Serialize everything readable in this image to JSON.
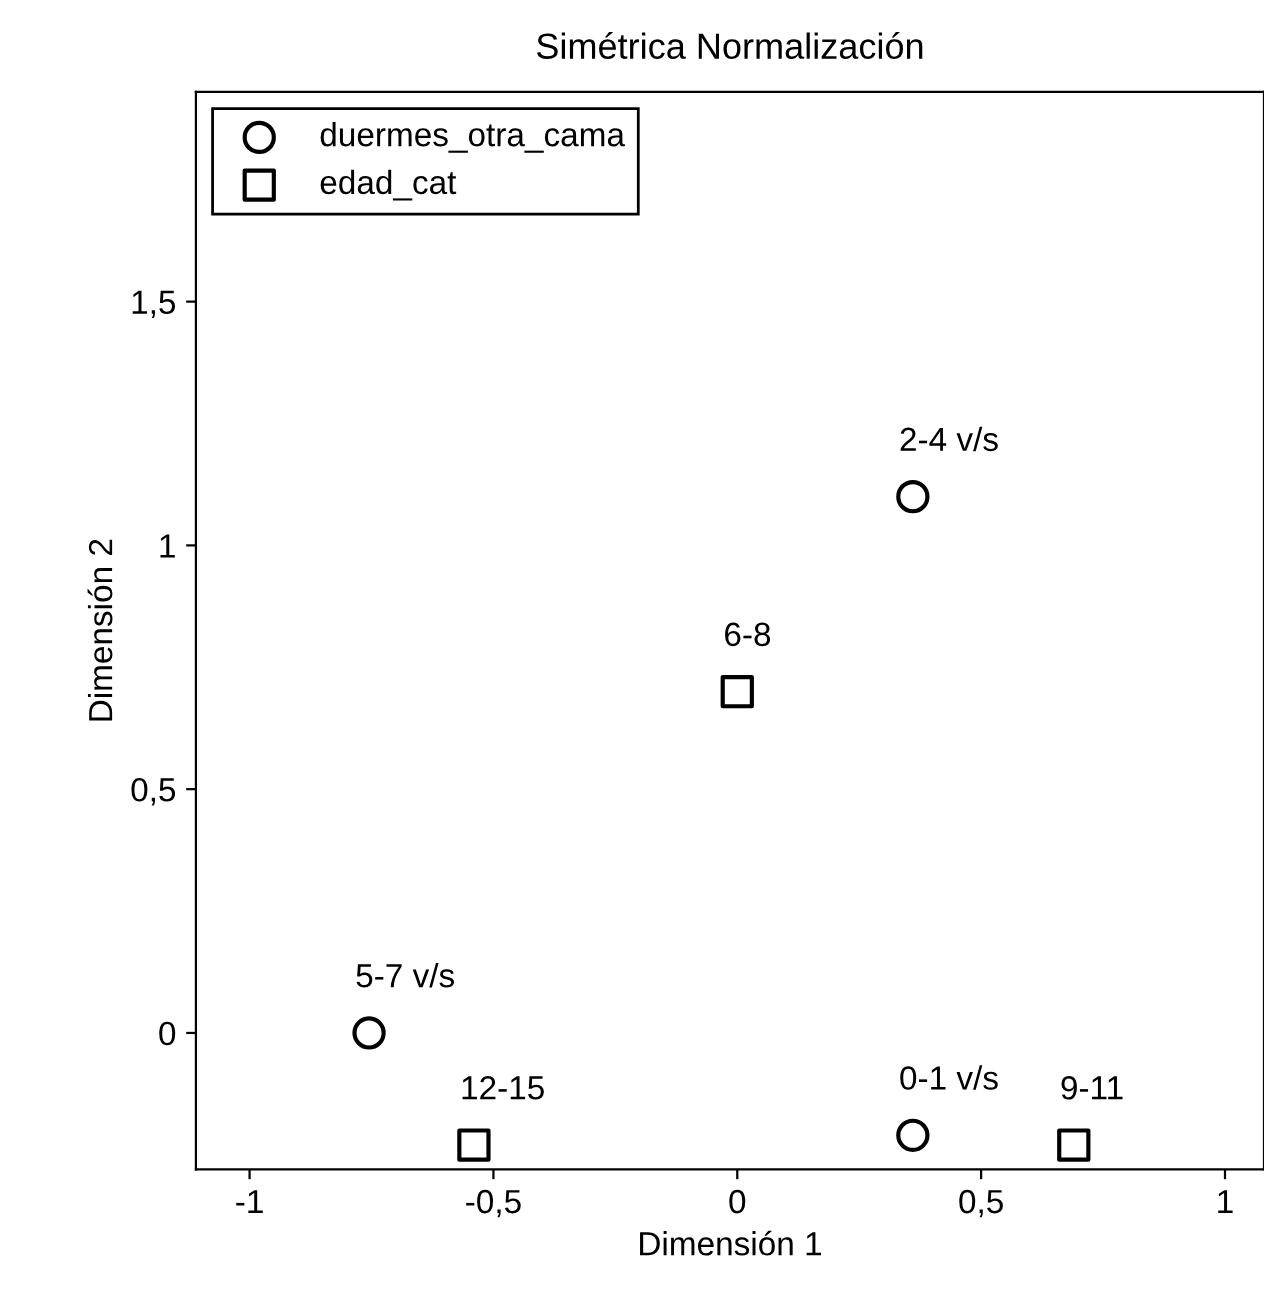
{
  "chart_data": {
    "type": "scatter",
    "title": "Simétrica Normalización",
    "xlabel": "Dimensión 1",
    "ylabel": "Dimensión 2",
    "xlim": [
      -1.11,
      1.08
    ],
    "ylim": [
      -0.28,
      1.93
    ],
    "xticks": [
      {
        "value": -1,
        "label": "-1"
      },
      {
        "value": -0.5,
        "label": "-0,5"
      },
      0,
      {
        "value": 0.5,
        "label": "0,5"
      },
      1
    ],
    "yticks": [
      0,
      {
        "value": 0.5,
        "label": "0,5"
      },
      1,
      {
        "value": 1.5,
        "label": "1,5"
      }
    ],
    "grid": false,
    "legend": "top left",
    "series": [
      {
        "name": "duermes_otra_cama",
        "color": "#000000",
        "marker": "circle",
        "x": [
          0.36,
          -0.755,
          0.36
        ],
        "values": [
          1.1,
          0.0,
          -0.21
        ],
        "value_labels": [
          "2-4 v/s",
          "5-7 v/s",
          "0-1 v/s"
        ]
      },
      {
        "name": "edad_cat",
        "color": "#000000",
        "marker": "square",
        "x": [
          0.0,
          -0.54,
          0.69
        ],
        "values": [
          0.7,
          -0.23,
          -0.23
        ],
        "value_labels": [
          "6-8",
          "12-15",
          "9-11"
        ]
      }
    ]
  }
}
